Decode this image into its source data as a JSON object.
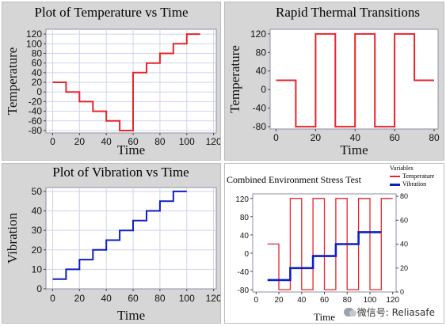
{
  "chart_data": [
    {
      "type": "line",
      "title": "Plot of Temperature vs Time",
      "xlabel": "Time",
      "ylabel": "Temperature",
      "xlim": [
        -5,
        122
      ],
      "ylim": [
        -85,
        130
      ],
      "xticks": [
        0,
        20,
        40,
        60,
        80,
        100,
        120
      ],
      "yticks": [
        -80,
        -60,
        -40,
        -20,
        0,
        20,
        40,
        60,
        80,
        100,
        120
      ],
      "grid": true,
      "color": "#e8242a",
      "series": [
        {
          "x": [
            0,
            10,
            10,
            20,
            20,
            30,
            30,
            40,
            40,
            50,
            50,
            60,
            60,
            70,
            70,
            80,
            80,
            90,
            90,
            100,
            100,
            110
          ],
          "y": [
            20,
            20,
            0,
            0,
            -20,
            -20,
            -40,
            -40,
            -60,
            -60,
            -80,
            -80,
            40,
            40,
            60,
            60,
            80,
            80,
            100,
            100,
            120,
            120
          ]
        }
      ]
    },
    {
      "type": "line",
      "title": "Rapid Thermal Transitions",
      "xlabel": "Time",
      "ylabel": "Temperature",
      "xlim": [
        -3,
        82
      ],
      "ylim": [
        -85,
        130
      ],
      "xticks": [
        0,
        20,
        40,
        60,
        80
      ],
      "yticks": [
        -80,
        -40,
        0,
        40,
        80,
        120
      ],
      "grid": false,
      "color": "#e8242a",
      "series": [
        {
          "x": [
            0,
            10,
            10,
            20,
            20,
            30,
            30,
            40,
            40,
            50,
            50,
            60,
            60,
            70,
            70,
            80
          ],
          "y": [
            20,
            20,
            -80,
            -80,
            120,
            120,
            -80,
            -80,
            120,
            120,
            -80,
            -80,
            120,
            120,
            20,
            20
          ]
        }
      ]
    },
    {
      "type": "line",
      "title": "Plot of Vibration vs Time",
      "xlabel": "Time",
      "ylabel": "Vibration",
      "xlim": [
        -5,
        122
      ],
      "ylim": [
        0,
        52
      ],
      "xticks": [
        0,
        20,
        40,
        60,
        80,
        100,
        120
      ],
      "yticks": [
        0,
        10,
        20,
        30,
        40,
        50
      ],
      "grid": true,
      "color": "#0e1fc7",
      "series": [
        {
          "x": [
            0,
            10,
            10,
            20,
            20,
            30,
            30,
            40,
            40,
            50,
            50,
            60,
            60,
            70,
            70,
            80,
            80,
            90,
            90,
            100
          ],
          "y": [
            5,
            5,
            10,
            10,
            15,
            15,
            20,
            20,
            25,
            25,
            30,
            30,
            35,
            35,
            40,
            40,
            45,
            45,
            50,
            50
          ]
        }
      ]
    },
    {
      "type": "line",
      "title": "Combined Environment Stress Test",
      "xlabel": "Time",
      "xlim": [
        -3,
        123
      ],
      "ylim": [
        -85,
        130
      ],
      "y2lim": [
        0,
        82
      ],
      "xticks": [
        0,
        20,
        40,
        60,
        80,
        100,
        120
      ],
      "yticks": [
        -80,
        -40,
        0,
        40,
        80,
        120
      ],
      "y2ticks": [
        0,
        20,
        40,
        60,
        80
      ],
      "grid": false,
      "legend": {
        "title": "Variables",
        "position": "top-right"
      },
      "series": [
        {
          "name": "Temperature",
          "color": "#e8242a",
          "axis": "left",
          "x": [
            10,
            20,
            20,
            30,
            30,
            40,
            40,
            50,
            50,
            60,
            60,
            70,
            70,
            80,
            80,
            90,
            90,
            100,
            100,
            110,
            110,
            120
          ],
          "y": [
            20,
            20,
            -80,
            -80,
            120,
            120,
            -80,
            -80,
            120,
            120,
            -80,
            -80,
            120,
            120,
            -80,
            -80,
            120,
            120,
            -80,
            -80,
            120,
            120
          ]
        },
        {
          "name": "Vibration",
          "color": "#0e1fc7",
          "axis": "right",
          "x": [
            10,
            30,
            30,
            50,
            50,
            70,
            70,
            90,
            90,
            110
          ],
          "y": [
            10,
            10,
            20,
            20,
            30,
            30,
            40,
            40,
            50,
            50
          ]
        }
      ]
    }
  ],
  "watermark": {
    "text": "微信号: Reliasafe",
    "icon": "wechat-icon"
  }
}
